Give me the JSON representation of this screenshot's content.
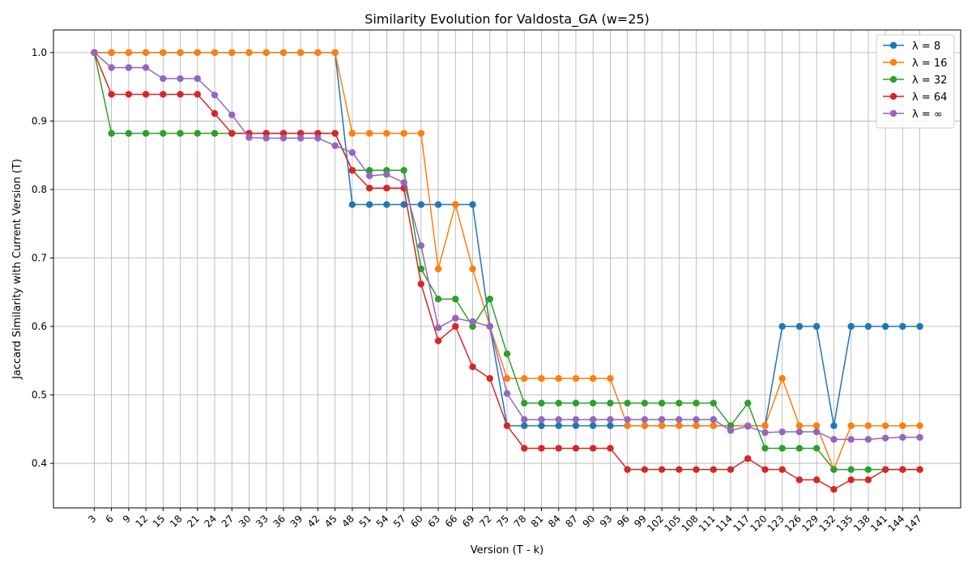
{
  "chart_data": {
    "type": "line",
    "title": "Similarity Evolution for Valdosta_GA (w=25)",
    "xlabel": "Version (T - k)",
    "ylabel": "Jaccard Similarity with Current Version (T)",
    "x": [
      3,
      6,
      9,
      12,
      15,
      18,
      21,
      24,
      27,
      30,
      33,
      36,
      39,
      42,
      45,
      48,
      51,
      54,
      57,
      60,
      63,
      66,
      69,
      72,
      75,
      78,
      81,
      84,
      87,
      90,
      93,
      96,
      99,
      102,
      105,
      108,
      111,
      114,
      117,
      120,
      123,
      126,
      129,
      132,
      135,
      138,
      141,
      144,
      147
    ],
    "ylim": [
      0.335,
      1.033
    ],
    "yticks": [
      "0.4",
      "0.5",
      "0.6",
      "0.7",
      "0.8",
      "0.9",
      "1.0"
    ],
    "grid": true,
    "legend_position": "top-right",
    "series": [
      {
        "name": "λ = 8",
        "color": "#1f77b4",
        "values": [
          1.0,
          1.0,
          1.0,
          1.0,
          1.0,
          1.0,
          1.0,
          1.0,
          1.0,
          1.0,
          1.0,
          1.0,
          1.0,
          1.0,
          1.0,
          0.778,
          0.778,
          0.778,
          0.778,
          0.778,
          0.778,
          0.778,
          0.778,
          0.6,
          0.455,
          0.455,
          0.455,
          0.455,
          0.455,
          0.455,
          0.455,
          0.455,
          0.455,
          0.455,
          0.455,
          0.455,
          0.455,
          0.455,
          0.455,
          0.455,
          0.6,
          0.6,
          0.6,
          0.455,
          0.6,
          0.6,
          0.6,
          0.6,
          0.6
        ]
      },
      {
        "name": "λ = 16",
        "color": "#ff7f0e",
        "values": [
          1.0,
          1.0,
          1.0,
          1.0,
          1.0,
          1.0,
          1.0,
          1.0,
          1.0,
          1.0,
          1.0,
          1.0,
          1.0,
          1.0,
          1.0,
          0.882,
          0.882,
          0.882,
          0.882,
          0.882,
          0.684,
          0.778,
          0.684,
          0.6,
          0.524,
          0.524,
          0.524,
          0.524,
          0.524,
          0.524,
          0.524,
          0.455,
          0.455,
          0.455,
          0.455,
          0.455,
          0.455,
          0.455,
          0.455,
          0.455,
          0.524,
          0.455,
          0.455,
          0.391,
          0.455,
          0.455,
          0.455,
          0.455,
          0.455
        ]
      },
      {
        "name": "λ = 32",
        "color": "#2ca02c",
        "values": [
          1.0,
          0.882,
          0.882,
          0.882,
          0.882,
          0.882,
          0.882,
          0.882,
          0.882,
          0.882,
          0.882,
          0.882,
          0.882,
          0.882,
          0.882,
          0.828,
          0.828,
          0.828,
          0.828,
          0.684,
          0.64,
          0.64,
          0.6,
          0.64,
          0.56,
          0.488,
          0.488,
          0.488,
          0.488,
          0.488,
          0.488,
          0.488,
          0.488,
          0.488,
          0.488,
          0.488,
          0.488,
          0.455,
          0.488,
          0.422,
          0.422,
          0.422,
          0.422,
          0.391,
          0.391,
          0.391,
          0.391,
          0.391,
          0.391
        ]
      },
      {
        "name": "λ = 64",
        "color": "#d62728",
        "values": [
          1.0,
          0.939,
          0.939,
          0.939,
          0.939,
          0.939,
          0.939,
          0.911,
          0.882,
          0.882,
          0.882,
          0.882,
          0.882,
          0.882,
          0.882,
          0.828,
          0.802,
          0.802,
          0.802,
          0.662,
          0.579,
          0.6,
          0.541,
          0.524,
          0.455,
          0.422,
          0.422,
          0.422,
          0.422,
          0.422,
          0.422,
          0.391,
          0.391,
          0.391,
          0.391,
          0.391,
          0.391,
          0.391,
          0.407,
          0.391,
          0.391,
          0.376,
          0.376,
          0.362,
          0.376,
          0.376,
          0.391,
          0.391,
          0.391
        ]
      },
      {
        "name": "λ = ∞",
        "color": "#9467bd",
        "values": [
          1.0,
          0.978,
          0.978,
          0.978,
          0.962,
          0.962,
          0.962,
          0.938,
          0.909,
          0.876,
          0.875,
          0.875,
          0.875,
          0.875,
          0.864,
          0.854,
          0.82,
          0.822,
          0.81,
          0.718,
          0.598,
          0.612,
          0.607,
          0.6,
          0.502,
          0.464,
          0.464,
          0.464,
          0.464,
          0.464,
          0.464,
          0.464,
          0.464,
          0.464,
          0.464,
          0.464,
          0.464,
          0.448,
          0.454,
          0.445,
          0.446,
          0.446,
          0.446,
          0.435,
          0.435,
          0.435,
          0.437,
          0.438,
          0.438
        ]
      }
    ]
  }
}
